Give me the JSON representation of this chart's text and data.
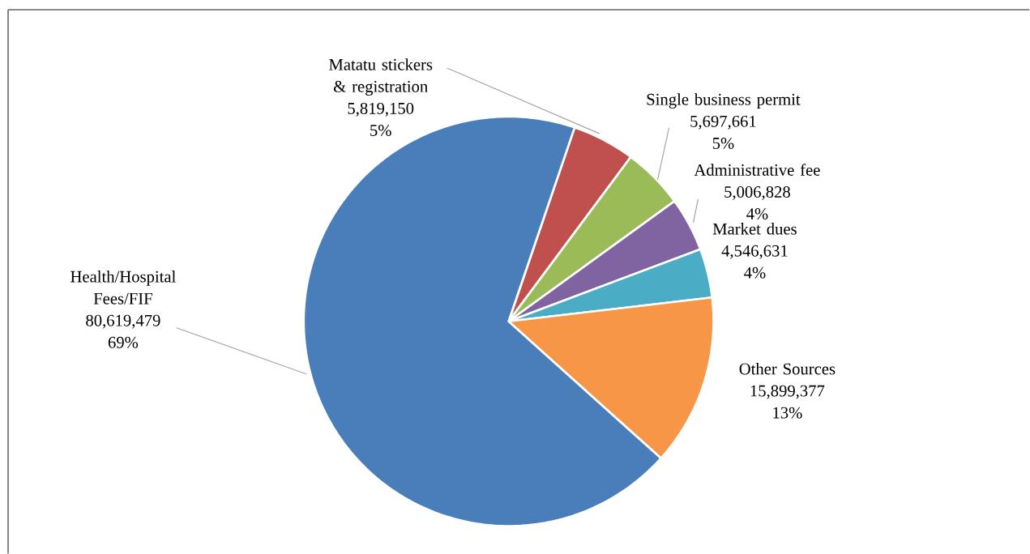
{
  "chart_data": {
    "type": "pie",
    "categories": [
      "Matatu stickers & registration",
      "Single business permit",
      "Administrative fee",
      "Market dues",
      "Other Sources",
      "Health/Hospital Fees/FIF"
    ],
    "values": [
      5819150,
      5697661,
      5006828,
      4546631,
      15899377,
      80619479
    ],
    "value_labels": [
      "5,819,150",
      "5,697,661",
      "5,006,828",
      "4,546,631",
      "15,899,377",
      "80,619,479"
    ],
    "colors": [
      "#c0504d",
      "#9bbb59",
      "#8064a2",
      "#4bacc6",
      "#f79646",
      "#4a7ebb"
    ],
    "annotations": [
      "5%",
      "5%",
      "4%",
      "4%",
      "13%",
      "69%"
    ]
  }
}
